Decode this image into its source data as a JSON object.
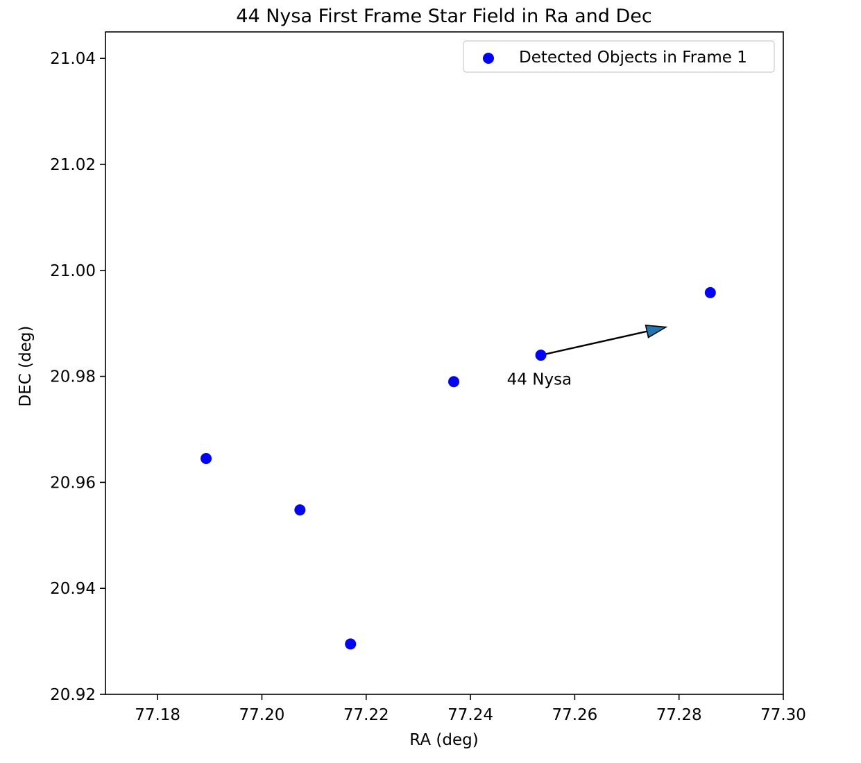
{
  "chart_data": {
    "type": "scatter",
    "title": "44 Nysa First Frame Star Field in Ra and Dec",
    "xlabel": "RA (deg)",
    "ylabel": "DEC (deg)",
    "xlim": [
      77.17,
      77.3
    ],
    "ylim": [
      20.92,
      21.045
    ],
    "xticks": [
      77.18,
      77.2,
      77.22,
      77.24,
      77.26,
      77.28,
      77.3
    ],
    "xtick_labels": [
      "77.18",
      "77.20",
      "77.22",
      "77.24",
      "77.26",
      "77.28",
      "77.30"
    ],
    "yticks": [
      20.92,
      20.94,
      20.96,
      20.98,
      21.0,
      21.02,
      21.04
    ],
    "ytick_labels": [
      "20.92",
      "20.94",
      "20.96",
      "20.98",
      "21.00",
      "21.02",
      "21.04"
    ],
    "grid": false,
    "legend_position": "top-right",
    "series": [
      {
        "name": "Detected Objects in Frame 1",
        "color": "#0000ff",
        "points": [
          {
            "x": 77.1893,
            "y": 20.9645
          },
          {
            "x": 77.2073,
            "y": 20.9548
          },
          {
            "x": 77.217,
            "y": 20.9295
          },
          {
            "x": 77.2368,
            "y": 20.979
          },
          {
            "x": 77.2535,
            "y": 20.984
          },
          {
            "x": 77.286,
            "y": 20.9958
          }
        ]
      }
    ],
    "annotations": [
      {
        "text": "44 Nysa",
        "text_x": 77.247,
        "text_y": 20.9795,
        "arrow_start": {
          "x": 77.2535,
          "y": 20.984
        },
        "arrow_end": {
          "x": 77.2775,
          "y": 20.9893
        },
        "arrow_color": "#1f77b4"
      }
    ]
  }
}
